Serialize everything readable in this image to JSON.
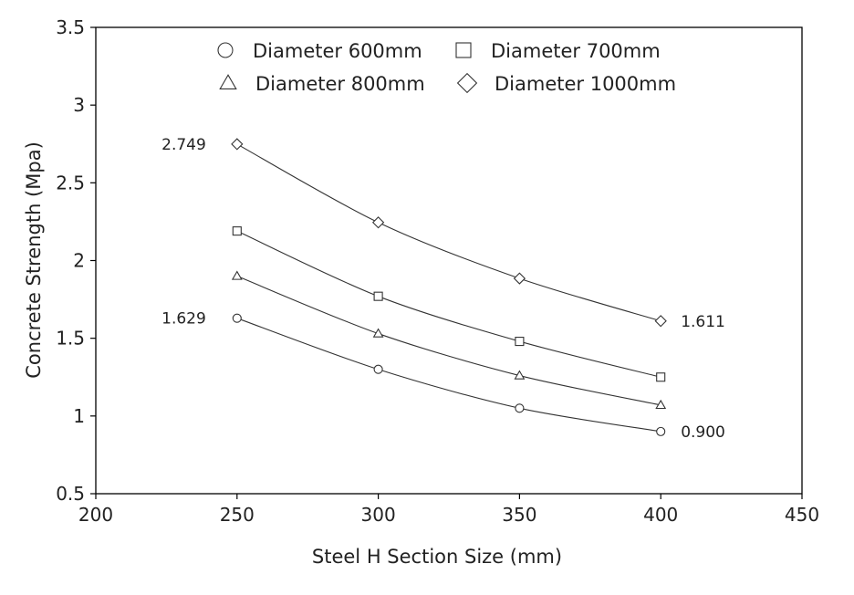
{
  "chart_data": {
    "type": "line",
    "xlabel": "Steel H Section Size (mm)",
    "ylabel": "Concrete Strength (Mpa)",
    "xlim": [
      200,
      450
    ],
    "ylim": [
      0.5,
      3.5
    ],
    "xticks": [
      200,
      250,
      300,
      350,
      400,
      450
    ],
    "xtick_labels": [
      "200",
      "250",
      "300",
      "350",
      "400",
      "450"
    ],
    "yticks": [
      0.5,
      1,
      1.5,
      2,
      2.5,
      3,
      3.5
    ],
    "ytick_labels": [
      "0.5",
      "1",
      "1.5",
      "2",
      "2.5",
      "3",
      "3.5"
    ],
    "grid": false,
    "legend_position": "top",
    "x": [
      250,
      300,
      350,
      400
    ],
    "series": [
      {
        "name": "Diameter 600mm",
        "marker": "circle",
        "values": [
          1.629,
          1.3,
          1.05,
          0.9
        ]
      },
      {
        "name": "Diameter 700mm",
        "marker": "square",
        "values": [
          2.19,
          1.77,
          1.48,
          1.25
        ]
      },
      {
        "name": "Diameter 800mm",
        "marker": "triangle",
        "values": [
          1.9,
          1.53,
          1.26,
          1.07
        ]
      },
      {
        "name": "Diameter 1000mm",
        "marker": "diamond",
        "values": [
          2.749,
          2.245,
          1.885,
          1.611
        ]
      }
    ],
    "annotations": [
      {
        "text": "2.749",
        "x": 250,
        "y": 2.749,
        "side": "left"
      },
      {
        "text": "1.629",
        "x": 250,
        "y": 1.629,
        "side": "left"
      },
      {
        "text": "1.611",
        "x": 400,
        "y": 1.611,
        "side": "right"
      },
      {
        "text": "0.900",
        "x": 400,
        "y": 0.9,
        "side": "right"
      }
    ],
    "colors": {
      "line": "#333333",
      "axis": "#000000",
      "text": "#222222"
    }
  }
}
